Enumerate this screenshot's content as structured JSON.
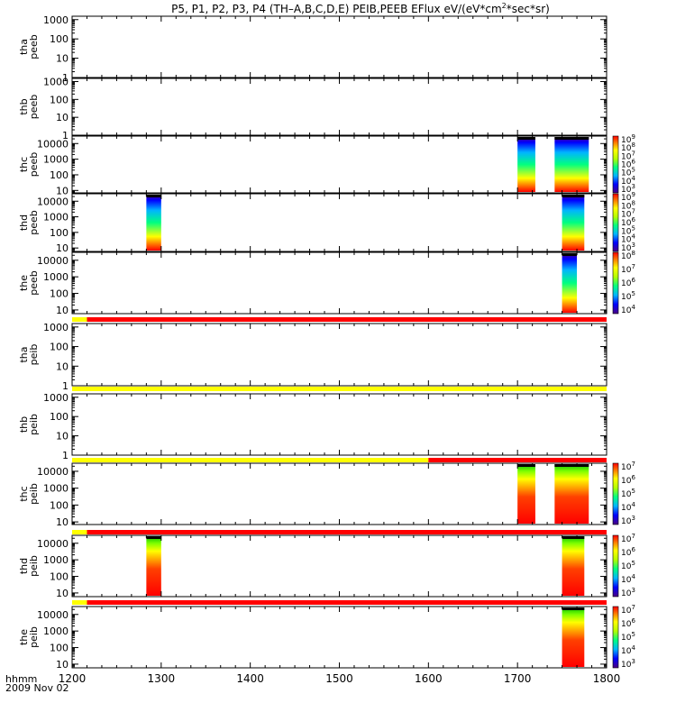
{
  "title": "P5, P1, P2, P3, P4 (TH-A,B,C,D,E) PEIB,PEEB EFlux eV/(eV*cm^2*sec*sr)",
  "title_parts": {
    "main": "P5, P1, P2, P3, P4 (TH–A,B,C,D,E) PEIB,PEEB EFlux eV/(eV*cm",
    "sup": "2",
    "tail": "*sec*sr)"
  },
  "x_axis": {
    "label_line1": "hhmm",
    "label_line2": "2009 Nov 02",
    "ticks": [
      "1200",
      "1300",
      "1400",
      "1500",
      "1600",
      "1700",
      "1800"
    ]
  },
  "colors": {
    "red": "#ff0000",
    "yellow": "#ffff00",
    "black": "#000000"
  },
  "chart_data": [
    {
      "type": "heatmap",
      "probe": "tha",
      "product": "peeb",
      "ylabel": [
        "tha",
        "peeb"
      ],
      "y_scale": "log",
      "ylim": [
        1,
        1500
      ],
      "y_ticks": [
        "1",
        "10",
        "100",
        "1000"
      ],
      "data_intervals": [],
      "colorbar": null
    },
    {
      "type": "heatmap",
      "probe": "thb",
      "product": "peeb",
      "ylabel": [
        "thb",
        "peeb"
      ],
      "y_scale": "log",
      "ylim": [
        1,
        1500
      ],
      "y_ticks": [
        "1",
        "10",
        "100",
        "1000"
      ],
      "data_intervals": [],
      "colorbar": null
    },
    {
      "type": "heatmap",
      "probe": "thc",
      "product": "peeb",
      "ylabel": [
        "thc",
        "peeb"
      ],
      "y_scale": "log",
      "ylim": [
        7,
        30000
      ],
      "y_ticks": [
        "10",
        "100",
        "1000",
        "10000"
      ],
      "data_intervals": [
        [
          "1700",
          "1712"
        ],
        [
          "1725",
          "1748"
        ]
      ],
      "colorbar": {
        "scale": "log",
        "labels": [
          {
            "base": "10",
            "exp": "3"
          },
          {
            "base": "10",
            "exp": "4"
          },
          {
            "base": "10",
            "exp": "5"
          },
          {
            "base": "10",
            "exp": "6"
          },
          {
            "base": "10",
            "exp": "7"
          },
          {
            "base": "10",
            "exp": "8"
          },
          {
            "base": "10",
            "exp": "9"
          }
        ]
      }
    },
    {
      "type": "heatmap",
      "probe": "thd",
      "product": "peeb",
      "ylabel": [
        "thd",
        "peeb"
      ],
      "y_scale": "log",
      "ylim": [
        6,
        30000
      ],
      "y_ticks": [
        "10",
        "100",
        "1000",
        "10000"
      ],
      "data_intervals": [
        [
          "1250",
          "1260"
        ],
        [
          "1730",
          "1745"
        ]
      ],
      "colorbar": {
        "scale": "log",
        "labels": [
          {
            "base": "10",
            "exp": "3"
          },
          {
            "base": "10",
            "exp": "4"
          },
          {
            "base": "10",
            "exp": "5"
          },
          {
            "base": "10",
            "exp": "6"
          },
          {
            "base": "10",
            "exp": "7"
          },
          {
            "base": "10",
            "exp": "8"
          },
          {
            "base": "10",
            "exp": "9"
          }
        ]
      }
    },
    {
      "type": "heatmap",
      "probe": "the",
      "product": "peeb",
      "ylabel": [
        "the",
        "peeb"
      ],
      "y_scale": "log",
      "ylim": [
        6,
        30000
      ],
      "y_ticks": [
        "10",
        "100",
        "1000",
        "10000"
      ],
      "data_intervals": [
        [
          "1730",
          "1740"
        ]
      ],
      "colorbar": {
        "scale": "log",
        "labels": [
          {
            "base": "10",
            "exp": "4"
          },
          {
            "base": "10",
            "exp": "5"
          },
          {
            "base": "10",
            "exp": "6"
          },
          {
            "base": "10",
            "exp": "7"
          },
          {
            "base": "10",
            "exp": "8"
          }
        ]
      }
    },
    {
      "type": "heatmap",
      "probe": "tha",
      "product": "peib",
      "ylabel": [
        "tha",
        "peib"
      ],
      "y_scale": "log",
      "ylim": [
        1,
        1500
      ],
      "y_ticks": [
        "1",
        "10",
        "100",
        "1000"
      ],
      "data_intervals": [],
      "colorbar": null
    },
    {
      "type": "heatmap",
      "probe": "thb",
      "product": "peib",
      "ylabel": [
        "thb",
        "peib"
      ],
      "y_scale": "log",
      "ylim": [
        1,
        1500
      ],
      "y_ticks": [
        "1",
        "10",
        "100",
        "1000"
      ],
      "data_intervals": [],
      "colorbar": null
    },
    {
      "type": "heatmap",
      "probe": "thc",
      "product": "peib",
      "ylabel": [
        "thc",
        "peib"
      ],
      "y_scale": "log",
      "ylim": [
        7,
        30000
      ],
      "y_ticks": [
        "10",
        "100",
        "1000",
        "10000"
      ],
      "data_intervals": [
        [
          "1700",
          "1712"
        ],
        [
          "1725",
          "1748"
        ]
      ],
      "colorbar": {
        "scale": "log",
        "labels": [
          {
            "base": "10",
            "exp": "3"
          },
          {
            "base": "10",
            "exp": "4"
          },
          {
            "base": "10",
            "exp": "5"
          },
          {
            "base": "10",
            "exp": "6"
          },
          {
            "base": "10",
            "exp": "7"
          }
        ]
      }
    },
    {
      "type": "heatmap",
      "probe": "thd",
      "product": "peib",
      "ylabel": [
        "thd",
        "peib"
      ],
      "y_scale": "log",
      "ylim": [
        6,
        30000
      ],
      "y_ticks": [
        "10",
        "100",
        "1000",
        "10000"
      ],
      "data_intervals": [
        [
          "1250",
          "1260"
        ],
        [
          "1730",
          "1745"
        ]
      ],
      "colorbar": {
        "scale": "log",
        "labels": [
          {
            "base": "10",
            "exp": "3"
          },
          {
            "base": "10",
            "exp": "4"
          },
          {
            "base": "10",
            "exp": "5"
          },
          {
            "base": "10",
            "exp": "6"
          },
          {
            "base": "10",
            "exp": "7"
          }
        ]
      }
    },
    {
      "type": "heatmap",
      "probe": "the",
      "product": "peib",
      "ylabel": [
        "the",
        "peib"
      ],
      "y_scale": "log",
      "ylim": [
        6,
        30000
      ],
      "y_ticks": [
        "10",
        "100",
        "1000",
        "10000"
      ],
      "data_intervals": [
        [
          "1730",
          "1745"
        ]
      ],
      "colorbar": {
        "scale": "log",
        "labels": [
          {
            "base": "10",
            "exp": "3"
          },
          {
            "base": "10",
            "exp": "4"
          },
          {
            "base": "10",
            "exp": "5"
          },
          {
            "base": "10",
            "exp": "6"
          },
          {
            "base": "10",
            "exp": "7"
          }
        ]
      }
    }
  ],
  "mode_bars": [
    {
      "before_panel": "tha-peib",
      "segments": [
        {
          "from": "1200",
          "to": "1210",
          "color": "yellow"
        },
        {
          "from": "1210",
          "to": "1800",
          "color": "red"
        }
      ]
    },
    {
      "before_panel": "thb-peib",
      "segments": [
        {
          "from": "1200",
          "to": "1800",
          "color": "yellow"
        }
      ]
    },
    {
      "before_panel": "thc-peib",
      "segments": [
        {
          "from": "1200",
          "to": "1600",
          "color": "yellow"
        },
        {
          "from": "1600",
          "to": "1800",
          "color": "red"
        }
      ]
    },
    {
      "before_panel": "thd-peib",
      "segments": [
        {
          "from": "1200",
          "to": "1210",
          "color": "yellow"
        },
        {
          "from": "1210",
          "to": "1800",
          "color": "red"
        }
      ]
    },
    {
      "before_panel": "the-peib",
      "segments": [
        {
          "from": "1200",
          "to": "1210",
          "color": "yellow"
        },
        {
          "from": "1210",
          "to": "1800",
          "color": "red"
        }
      ]
    }
  ]
}
